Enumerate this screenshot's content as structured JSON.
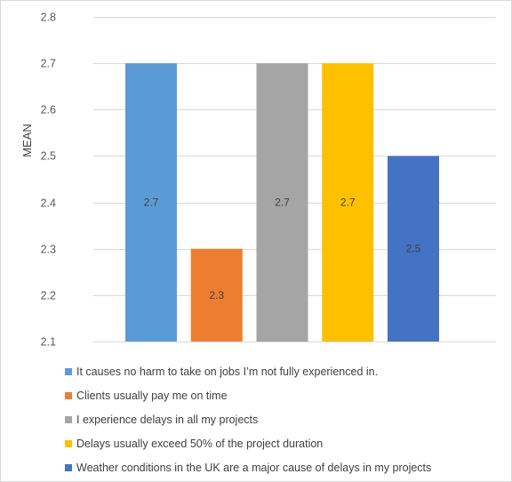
{
  "chart_data": {
    "type": "bar",
    "title": "",
    "xlabel": "",
    "ylabel": "MEAN",
    "ylim": [
      2.1,
      2.8
    ],
    "yticks": [
      2.1,
      2.2,
      2.3,
      2.4,
      2.5,
      2.6,
      2.7,
      2.8
    ],
    "grid": true,
    "legend_position": "bottom",
    "series": [
      {
        "name": "It causes no harm to take on jobs I’m not fully experienced in.",
        "value": 2.7,
        "label": "2.7",
        "color": "#5b9bd5"
      },
      {
        "name": "Clients usually pay me on time",
        "value": 2.3,
        "label": "2.3",
        "color": "#ed7d31"
      },
      {
        "name": "I experience delays in all my projects",
        "value": 2.7,
        "label": "2.7",
        "color": "#a5a5a5"
      },
      {
        "name": "Delays usually exceed 50% of the project duration",
        "value": 2.7,
        "label": "2.7",
        "color": "#ffc000"
      },
      {
        "name": "Weather conditions in the UK are a major cause of delays in my projects",
        "value": 2.5,
        "label": "2.5",
        "color": "#4472c4"
      }
    ]
  }
}
